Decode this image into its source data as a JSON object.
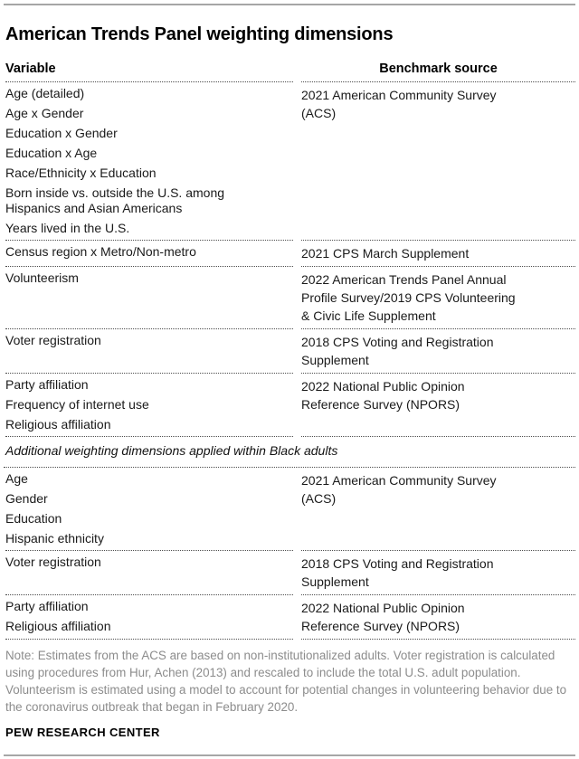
{
  "title": "American Trends Panel weighting dimensions",
  "table": {
    "headers": {
      "variable": "Variable",
      "benchmark": "Benchmark source"
    },
    "rows": [
      {
        "variables": [
          "Age (detailed)",
          "Age x Gender",
          "Education x Gender",
          "Education x Age",
          "Race/Ethnicity x Education",
          "Born inside vs. outside the U.S. among Hispanics and Asian Americans",
          "Years lived in the U.S."
        ],
        "benchmark": "2021 American Community Survey (ACS)"
      },
      {
        "variables": [
          "Census region x Metro/Non-metro"
        ],
        "benchmark": "2021 CPS March Supplement"
      },
      {
        "variables": [
          "Volunteerism"
        ],
        "benchmark": "2022 American Trends Panel Annual Profile Survey/2019 CPS Volunteering & Civic Life Supplement"
      },
      {
        "variables": [
          "Voter registration"
        ],
        "benchmark": "2018 CPS Voting and Registration Supplement"
      },
      {
        "variables": [
          "Party affiliation",
          "Frequency of internet use",
          "Religious affiliation"
        ],
        "benchmark": "2022 National Public Opinion Reference Survey (NPORS)"
      },
      {
        "section": "Additional weighting dimensions applied within Black adults"
      },
      {
        "variables": [
          "Age",
          "Gender",
          "Education",
          "Hispanic ethnicity"
        ],
        "benchmark": "2021 American Community Survey (ACS)"
      },
      {
        "variables": [
          "Voter registration"
        ],
        "benchmark": "2018 CPS Voting and Registration Supplement"
      },
      {
        "variables": [
          "Party affiliation",
          "Religious affiliation"
        ],
        "benchmark": "2022 National Public Opinion Reference Survey (NPORS)"
      }
    ]
  },
  "note": "Note: Estimates from the ACS are based on non-institutionalized adults. Voter registration is calculated using procedures from Hur, Achen (2013) and rescaled to include the total U.S. adult population. Volunteerism is estimated using a model to account for potential changes in volunteering behavior due to the coronavirus outbreak that began in February 2020.",
  "footer": "PEW RESEARCH CENTER",
  "colors": {
    "text": "#1a1a1a",
    "title": "#000000",
    "note_gray": "#8c8c8c",
    "rule_gray": "#a6a6a6",
    "divider_dotted": "#4d4d4d",
    "background": "#ffffff"
  }
}
